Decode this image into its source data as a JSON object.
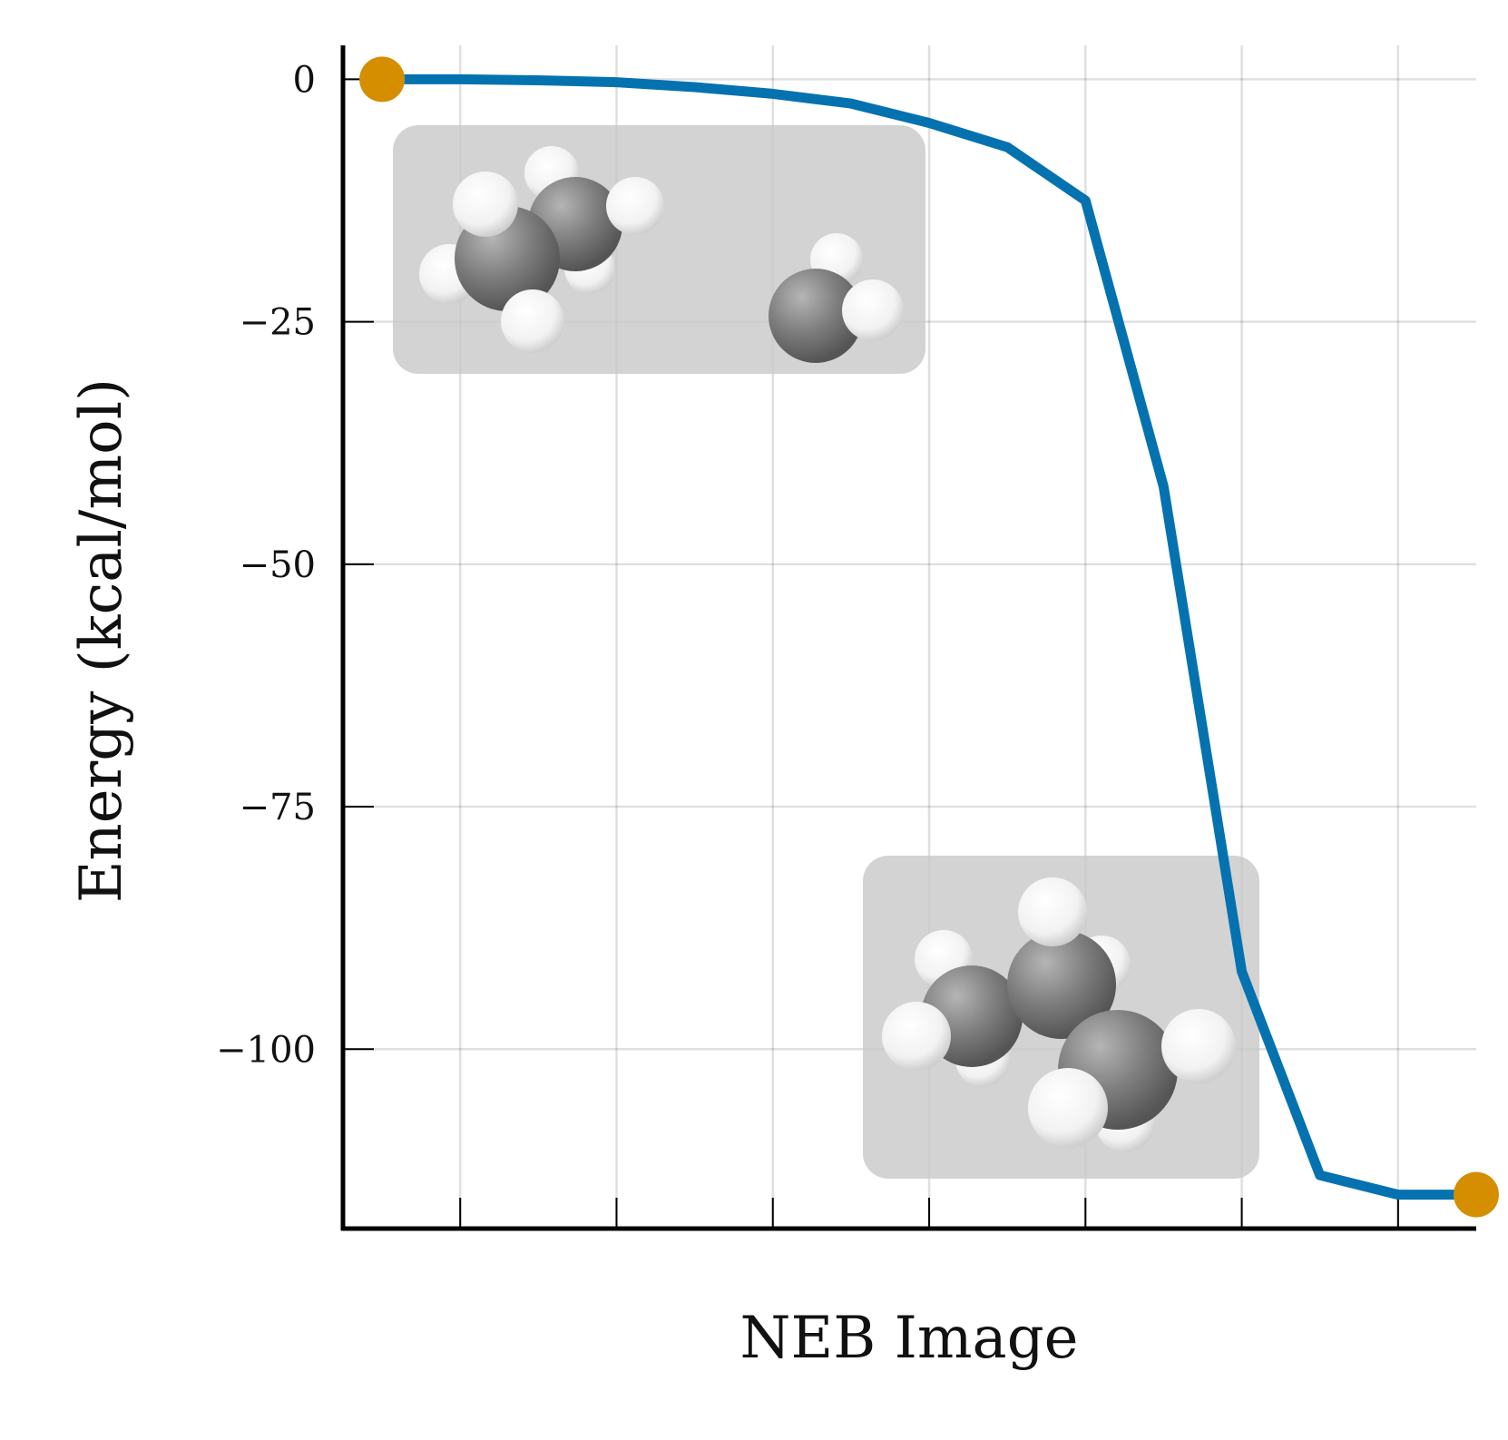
{
  "chart_data": {
    "type": "line",
    "title": "",
    "xlabel": "NEB Image",
    "ylabel": "Energy (kcal/mol)",
    "x": [
      0,
      1,
      2,
      3,
      4,
      5,
      6,
      7,
      8,
      9,
      10,
      11,
      12,
      13,
      14
    ],
    "series": [
      {
        "values": [
          0,
          0,
          -0.1,
          -0.3,
          -0.8,
          -1.5,
          -2.5,
          -4.5,
          -7.0,
          -12.5,
          -42.0,
          -92.0,
          -113.0,
          -115.0,
          -115.0
        ],
        "color": "#0572b0"
      }
    ],
    "endpoints": {
      "color": "#d48e00"
    },
    "yticks": [
      0,
      -25,
      -50,
      -75,
      -100
    ],
    "ytick_labels": [
      "0",
      "−25",
      "−50",
      "−75",
      "−100"
    ],
    "xticks_labeled": false,
    "ylim": [
      -118.5,
      3.5
    ],
    "xlim": [
      -0.5,
      14
    ],
    "grid": true,
    "insets": [
      {
        "name": "reactant-molecules",
        "description": "molecule-image"
      },
      {
        "name": "product-molecule",
        "description": "molecule-image"
      }
    ]
  }
}
